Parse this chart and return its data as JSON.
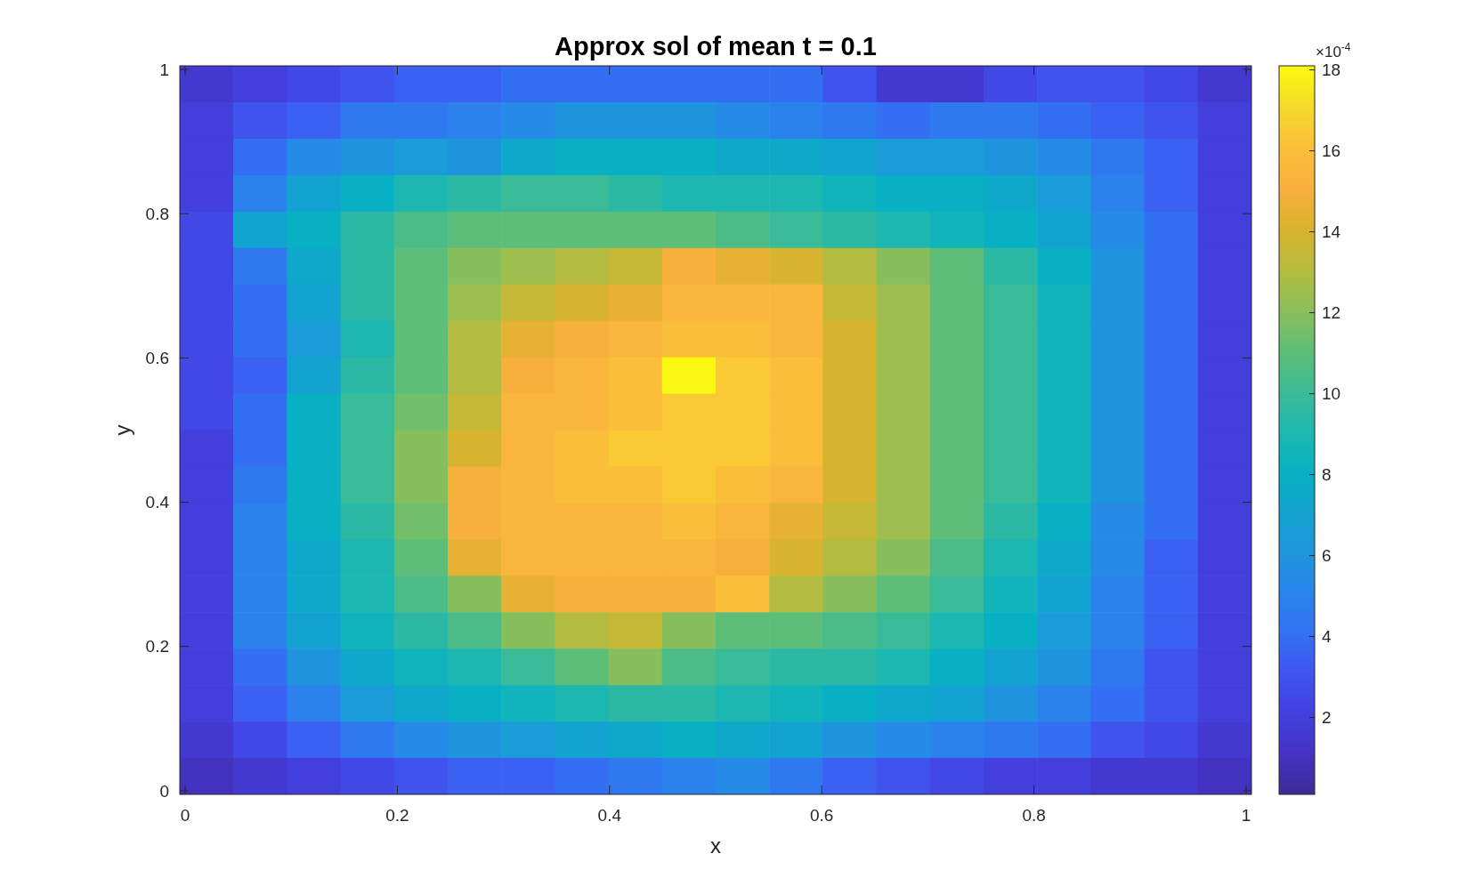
{
  "chart_data": {
    "type": "heatmap",
    "title": "Approx sol of mean t = 0.1",
    "xlabel": "x",
    "ylabel": "y",
    "clabel": "×10$^{-4}$",
    "xlim": [
      -0.005,
      1.005
    ],
    "ylim": [
      -0.005,
      1.005
    ],
    "xticks": [
      0,
      0.2,
      0.4,
      0.6,
      0.8,
      1
    ],
    "yticks": [
      0,
      0.2,
      0.4,
      0.6,
      0.8,
      1
    ],
    "clim": [
      0.1,
      18.1
    ],
    "cticks": [
      2,
      4,
      6,
      8,
      10,
      12,
      14,
      16,
      18
    ],
    "cells": [
      [
        1.5,
        2,
        2.5,
        3,
        3.5,
        3.5,
        4,
        4,
        4,
        4,
        4,
        4,
        3,
        1.5,
        1.5,
        2.5,
        3,
        3,
        2.5,
        1.5
      ],
      [
        2,
        3,
        3.5,
        4.5,
        4.5,
        5,
        5.5,
        6,
        6,
        6,
        5.5,
        5,
        4.5,
        4,
        4.5,
        4.5,
        4,
        3.5,
        3,
        2
      ],
      [
        2,
        4,
        5.5,
        6,
        6.5,
        6,
        7.5,
        8,
        8,
        8,
        7.5,
        7.5,
        7,
        6.5,
        6.5,
        6,
        5.5,
        4.5,
        3.5,
        2
      ],
      [
        2,
        5,
        7,
        8,
        9,
        9.5,
        10,
        10,
        9.5,
        9,
        9,
        9,
        8.5,
        8,
        8,
        7.5,
        6.5,
        5,
        3.5,
        2
      ],
      [
        2.5,
        7,
        8,
        9.5,
        10.5,
        11,
        11,
        11,
        11,
        11,
        10.5,
        10,
        9.5,
        9,
        8.5,
        8,
        7,
        5.5,
        4,
        2
      ],
      [
        2.5,
        4.5,
        7.5,
        9.5,
        11,
        12,
        12.5,
        13,
        13.5,
        15,
        14.5,
        14,
        13,
        12,
        11,
        9.5,
        8,
        6,
        4,
        2
      ],
      [
        2.5,
        4,
        7,
        9.5,
        11,
        12.5,
        13.5,
        14,
        14.5,
        15.5,
        15.5,
        15.5,
        13.5,
        12.5,
        11,
        10,
        8.5,
        6,
        4,
        2
      ],
      [
        2.5,
        4,
        6.5,
        9,
        11,
        13,
        14.5,
        15,
        15.5,
        16,
        16,
        15.5,
        14,
        12.5,
        11,
        10,
        8.5,
        6,
        4,
        2
      ],
      [
        2.5,
        3.5,
        7,
        9.5,
        11,
        13,
        15,
        15.5,
        16,
        18,
        16.5,
        16,
        14,
        12.5,
        11,
        10,
        8.5,
        6,
        4,
        2
      ],
      [
        2.5,
        4,
        8,
        10,
        11.5,
        13.5,
        15.5,
        15.5,
        16,
        16.5,
        16.5,
        16,
        14,
        12.5,
        11,
        10,
        8.5,
        6,
        4,
        2
      ],
      [
        2,
        4,
        8,
        10,
        12,
        14,
        15.5,
        16,
        16.5,
        16.5,
        16.5,
        16,
        14,
        12.5,
        11,
        10,
        8.5,
        6,
        4,
        2
      ],
      [
        2,
        4.5,
        8,
        10,
        12,
        15,
        15.5,
        16,
        16,
        16.5,
        16,
        15.5,
        14,
        12.5,
        11,
        10,
        8.5,
        6,
        4,
        2
      ],
      [
        2,
        5,
        8,
        9.5,
        11.5,
        15,
        15.5,
        15.5,
        15.5,
        16,
        15.5,
        14.5,
        13.5,
        12.5,
        11,
        9.5,
        8,
        5.5,
        4,
        2
      ],
      [
        2,
        5,
        7.5,
        9,
        11,
        14.5,
        15.5,
        15.5,
        15.5,
        15.5,
        15,
        14,
        13,
        12,
        10.5,
        9,
        7.5,
        5.5,
        3.5,
        2
      ],
      [
        2,
        5,
        7.5,
        9,
        10.5,
        12,
        14.5,
        15,
        15,
        15,
        16,
        13,
        12,
        11,
        10,
        8.5,
        7,
        5,
        3.5,
        2
      ],
      [
        2,
        5,
        7,
        8.5,
        9.5,
        10.5,
        12,
        13,
        13.5,
        12,
        11,
        11,
        10.5,
        10,
        9,
        8,
        6.5,
        5,
        3.5,
        2
      ],
      [
        2,
        4,
        6,
        7.5,
        8.5,
        9,
        10,
        11,
        12,
        10.5,
        10,
        9.5,
        9.5,
        9,
        8,
        7,
        6,
        4.5,
        3,
        2
      ],
      [
        2,
        3.5,
        5,
        6.5,
        7.5,
        8,
        8.5,
        9,
        9.5,
        9.5,
        9,
        8.5,
        8,
        7.5,
        7,
        6,
        5,
        4,
        3,
        2
      ],
      [
        1.5,
        2.5,
        3.5,
        4.5,
        5.5,
        6,
        6.5,
        7,
        7.5,
        8,
        7.5,
        7,
        6,
        5.5,
        5,
        4.5,
        4,
        3,
        2.5,
        1.5
      ],
      [
        1,
        1.5,
        2,
        2.5,
        3,
        3.5,
        3.5,
        4,
        4.5,
        5,
        5.5,
        4.5,
        3.5,
        3,
        2.5,
        2,
        2,
        1.5,
        1.5,
        1
      ]
    ]
  }
}
